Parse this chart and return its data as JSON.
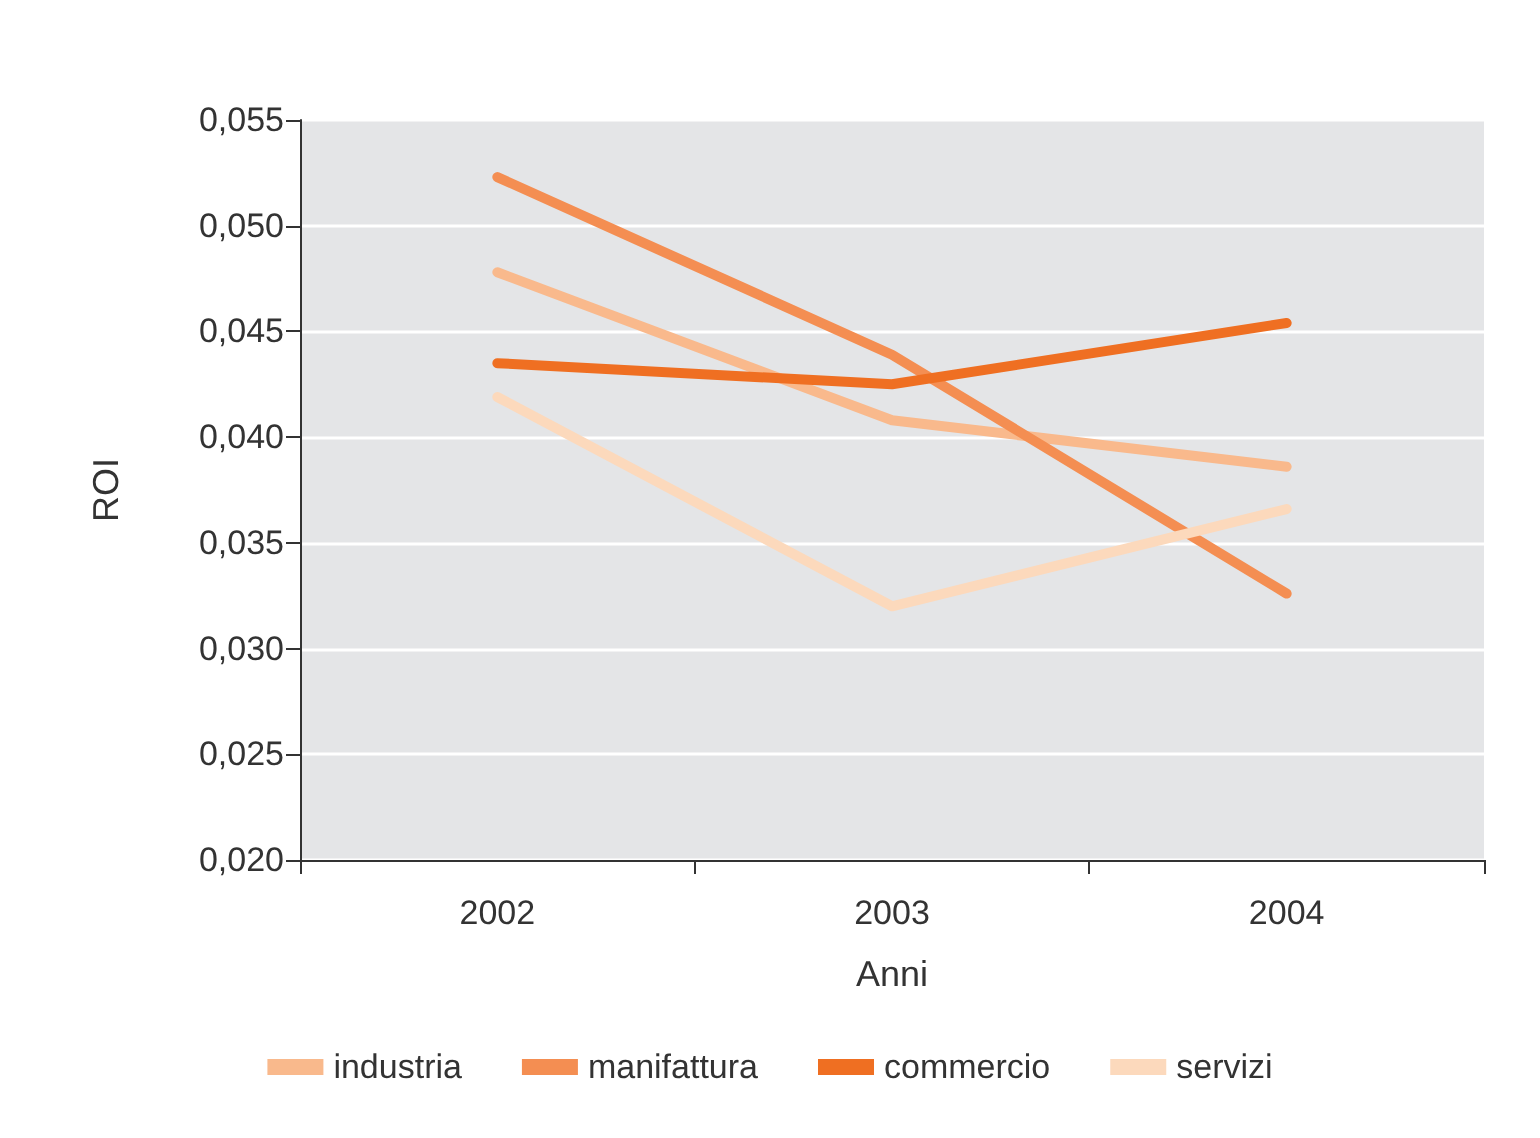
{
  "chart_data": {
    "type": "line",
    "xlabel": "Anni",
    "ylabel": "ROI",
    "categories": [
      "2002",
      "2003",
      "2004"
    ],
    "series": [
      {
        "name": "industria",
        "color": "#f9b98c",
        "values": [
          0.0478,
          0.0408,
          0.0386
        ]
      },
      {
        "name": "manifattura",
        "color": "#f48e52",
        "values": [
          0.0523,
          0.0439,
          0.0326
        ]
      },
      {
        "name": "commercio",
        "color": "#ef6f22",
        "values": [
          0.0435,
          0.0425,
          0.0454
        ]
      },
      {
        "name": "servizi",
        "color": "#fcd9bc",
        "values": [
          0.0419,
          0.032,
          0.0366
        ]
      }
    ],
    "ylim": [
      0.02,
      0.055
    ],
    "yticks": [
      {
        "value": 0.02,
        "label": "0,020"
      },
      {
        "value": 0.025,
        "label": "0,025"
      },
      {
        "value": 0.03,
        "label": "0,030"
      },
      {
        "value": 0.035,
        "label": "0,035"
      },
      {
        "value": 0.04,
        "label": "0,040"
      },
      {
        "value": 0.045,
        "label": "0,045"
      },
      {
        "value": 0.05,
        "label": "0,050"
      },
      {
        "value": 0.055,
        "label": "0,055"
      }
    ],
    "grid": "y",
    "legend": "bottom",
    "marker": "none",
    "line_style": "solid"
  }
}
